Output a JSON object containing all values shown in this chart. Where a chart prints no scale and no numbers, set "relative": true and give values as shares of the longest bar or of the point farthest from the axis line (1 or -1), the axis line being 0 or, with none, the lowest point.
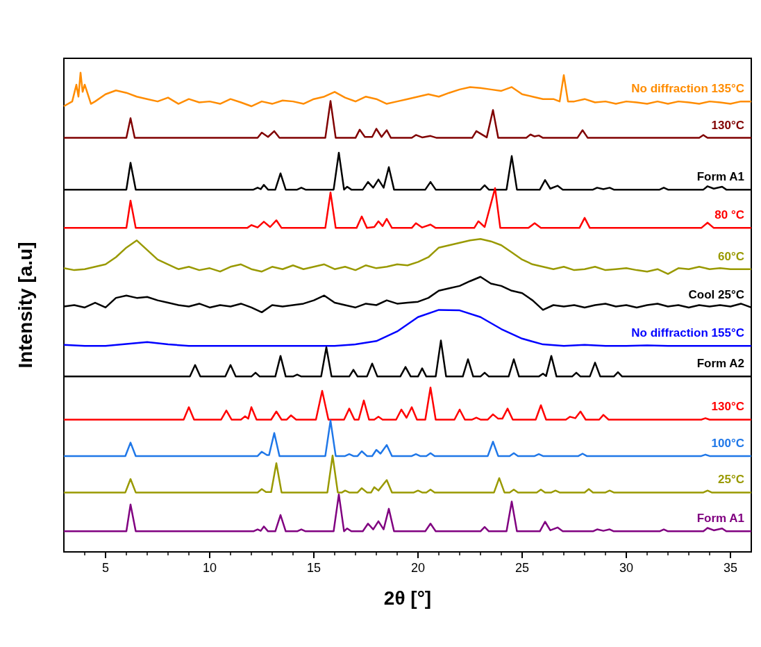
{
  "chart_data": {
    "type": "line",
    "xlabel": "2θ [°]",
    "ylabel": "Intensity [a.u]",
    "relative": true,
    "marker": "none",
    "xlim": [
      3,
      36
    ],
    "xticks": [
      5,
      10,
      15,
      20,
      25,
      30,
      35
    ],
    "grid": false,
    "series": [
      {
        "name": "No diffraction 135°C",
        "color": "#ff8c00",
        "x": [
          3,
          3.4,
          3.6,
          3.7,
          3.8,
          3.9,
          4.0,
          4.3,
          4.5,
          5,
          5.5,
          6,
          6.5,
          7,
          7.5,
          8,
          8.5,
          9,
          9.5,
          10,
          10.5,
          11,
          11.5,
          12,
          12.5,
          13,
          13.5,
          14,
          14.5,
          15,
          15.5,
          16,
          16.5,
          17,
          17.5,
          18,
          18.5,
          19,
          19.5,
          20,
          20.5,
          21,
          21.5,
          22,
          22.5,
          23,
          23.5,
          24,
          24.5,
          25,
          25.5,
          26,
          26.5,
          26.8,
          27,
          27.2,
          27.5,
          28,
          28.5,
          29,
          29.5,
          30,
          30.5,
          31,
          31.5,
          32,
          32.5,
          33,
          33.5,
          34,
          34.5,
          35,
          35.5,
          36
        ],
        "values": [
          0.93,
          0.94,
          0.975,
          0.95,
          1.0,
          0.96,
          0.975,
          0.935,
          0.94,
          0.955,
          0.963,
          0.958,
          0.95,
          0.945,
          0.94,
          0.948,
          0.935,
          0.945,
          0.938,
          0.94,
          0.935,
          0.945,
          0.938,
          0.93,
          0.94,
          0.935,
          0.942,
          0.94,
          0.935,
          0.945,
          0.95,
          0.96,
          0.948,
          0.94,
          0.95,
          0.945,
          0.935,
          0.94,
          0.945,
          0.95,
          0.955,
          0.95,
          0.958,
          0.965,
          0.97,
          0.968,
          0.965,
          0.962,
          0.97,
          0.955,
          0.95,
          0.945,
          0.945,
          0.94,
          0.995,
          0.94,
          0.94,
          0.945,
          0.938,
          0.94,
          0.935,
          0.94,
          0.938,
          0.935,
          0.94,
          0.935,
          0.94,
          0.938,
          0.935,
          0.94,
          0.938,
          0.935,
          0.94,
          0.94
        ]
      },
      {
        "name": "130°C",
        "color": "#800000",
        "x": [
          3,
          6.0,
          6.2,
          6.4,
          12.3,
          12.5,
          12.8,
          13.1,
          13.35,
          15.55,
          15.8,
          16.05,
          17.0,
          17.2,
          17.45,
          17.8,
          18.0,
          18.25,
          18.5,
          18.7,
          19.7,
          19.9,
          20.2,
          20.6,
          20.9,
          22.6,
          22.8,
          23.3,
          23.6,
          23.85,
          25.2,
          25.4,
          25.6,
          25.8,
          26.0,
          27.65,
          27.9,
          28.15,
          33.5,
          33.7,
          33.9,
          36
        ],
        "values": [
          0.864,
          0.864,
          0.905,
          0.864,
          0.864,
          0.875,
          0.866,
          0.878,
          0.864,
          0.864,
          0.941,
          0.864,
          0.864,
          0.881,
          0.866,
          0.866,
          0.883,
          0.866,
          0.88,
          0.864,
          0.864,
          0.87,
          0.865,
          0.868,
          0.864,
          0.864,
          0.878,
          0.865,
          0.922,
          0.864,
          0.864,
          0.871,
          0.867,
          0.869,
          0.864,
          0.864,
          0.88,
          0.864,
          0.864,
          0.87,
          0.864,
          0.864
        ]
      },
      {
        "name": "Form A1",
        "color": "#000000",
        "x": [
          3,
          6.0,
          6.2,
          6.45,
          12.1,
          12.3,
          12.45,
          12.6,
          12.8,
          13.15,
          13.4,
          13.65,
          14.2,
          14.4,
          14.6,
          15.95,
          16.2,
          16.45,
          16.6,
          16.8,
          17.35,
          17.6,
          17.85,
          18.1,
          18.35,
          18.6,
          18.85,
          20.35,
          20.6,
          20.85,
          23.0,
          23.2,
          23.4,
          24.25,
          24.5,
          24.75,
          25.85,
          26.1,
          26.35,
          26.7,
          26.95,
          28.4,
          28.6,
          28.9,
          29.2,
          29.4,
          31.6,
          31.8,
          32.0,
          33.7,
          33.9,
          34.2,
          34.6,
          34.8,
          36
        ],
        "values": [
          0.756,
          0.756,
          0.812,
          0.756,
          0.756,
          0.76,
          0.757,
          0.766,
          0.756,
          0.756,
          0.79,
          0.756,
          0.756,
          0.76,
          0.756,
          0.756,
          0.833,
          0.756,
          0.762,
          0.756,
          0.756,
          0.772,
          0.76,
          0.777,
          0.76,
          0.803,
          0.756,
          0.756,
          0.772,
          0.756,
          0.756,
          0.765,
          0.756,
          0.756,
          0.826,
          0.756,
          0.756,
          0.776,
          0.758,
          0.764,
          0.756,
          0.756,
          0.76,
          0.757,
          0.76,
          0.756,
          0.756,
          0.76,
          0.756,
          0.756,
          0.763,
          0.758,
          0.762,
          0.756,
          0.756
        ]
      },
      {
        "name": "80 °C",
        "color": "#ff0000",
        "x": [
          3,
          6.0,
          6.2,
          6.45,
          11.8,
          12.0,
          12.3,
          12.6,
          12.9,
          13.2,
          13.45,
          15.55,
          15.8,
          16.05,
          17.05,
          17.3,
          17.55,
          17.9,
          18.1,
          18.3,
          18.5,
          18.75,
          19.7,
          19.9,
          20.2,
          20.6,
          20.85,
          22.7,
          22.9,
          23.2,
          23.7,
          23.95,
          25.3,
          25.6,
          25.9,
          27.75,
          28.0,
          28.25,
          33.6,
          33.9,
          34.2,
          36
        ],
        "values": [
          0.676,
          0.676,
          0.733,
          0.676,
          0.676,
          0.682,
          0.677,
          0.689,
          0.678,
          0.692,
          0.676,
          0.676,
          0.75,
          0.676,
          0.676,
          0.7,
          0.676,
          0.678,
          0.69,
          0.68,
          0.695,
          0.676,
          0.676,
          0.686,
          0.677,
          0.683,
          0.676,
          0.676,
          0.69,
          0.678,
          0.759,
          0.676,
          0.676,
          0.686,
          0.676,
          0.676,
          0.697,
          0.676,
          0.676,
          0.687,
          0.676,
          0.676
        ]
      },
      {
        "name": "60°C",
        "color": "#999900",
        "x": [
          3,
          3.5,
          4,
          4.5,
          5,
          5.5,
          6,
          6.5,
          7,
          7.5,
          8,
          8.5,
          9,
          9.5,
          10,
          10.5,
          11,
          11.5,
          12,
          12.5,
          13,
          13.5,
          14,
          14.5,
          15,
          15.5,
          16,
          16.5,
          17,
          17.5,
          18,
          18.5,
          19,
          19.5,
          20,
          20.5,
          21,
          21.5,
          22,
          22.5,
          23,
          23.5,
          24,
          24.5,
          25,
          25.5,
          26,
          26.5,
          27,
          27.5,
          28,
          28.5,
          29,
          29.5,
          30,
          30.5,
          31,
          31.5,
          32,
          32.5,
          33,
          33.5,
          34,
          34.5,
          35,
          35.5,
          36
        ],
        "values": [
          0.592,
          0.588,
          0.59,
          0.595,
          0.6,
          0.615,
          0.635,
          0.65,
          0.63,
          0.61,
          0.6,
          0.59,
          0.595,
          0.588,
          0.592,
          0.585,
          0.595,
          0.6,
          0.59,
          0.585,
          0.595,
          0.59,
          0.598,
          0.59,
          0.595,
          0.6,
          0.59,
          0.595,
          0.588,
          0.598,
          0.592,
          0.595,
          0.6,
          0.598,
          0.605,
          0.615,
          0.635,
          0.64,
          0.645,
          0.65,
          0.653,
          0.648,
          0.64,
          0.625,
          0.61,
          0.6,
          0.595,
          0.59,
          0.595,
          0.588,
          0.59,
          0.595,
          0.588,
          0.59,
          0.592,
          0.588,
          0.585,
          0.59,
          0.58,
          0.592,
          0.59,
          0.595,
          0.59,
          0.592,
          0.59,
          0.59,
          0.59
        ]
      },
      {
        "name": "Cool 25°C",
        "color": "#000000",
        "x": [
          3,
          3.5,
          4,
          4.5,
          5,
          5.5,
          6,
          6.5,
          7,
          7.5,
          8,
          8.5,
          9,
          9.5,
          10,
          10.5,
          11,
          11.5,
          12,
          12.5,
          13,
          13.5,
          14,
          14.5,
          15,
          15.5,
          16,
          16.5,
          17,
          17.5,
          18,
          18.5,
          19,
          19.5,
          20,
          20.5,
          21,
          21.5,
          22,
          22.5,
          23,
          23.5,
          24,
          24.5,
          25,
          25.5,
          26,
          26.5,
          27,
          27.5,
          28,
          28.5,
          29,
          29.5,
          30,
          30.5,
          31,
          31.5,
          32,
          32.5,
          33,
          33.5,
          34,
          34.5,
          35,
          35.5,
          36
        ],
        "values": [
          0.512,
          0.515,
          0.51,
          0.52,
          0.51,
          0.53,
          0.535,
          0.53,
          0.532,
          0.525,
          0.52,
          0.515,
          0.512,
          0.518,
          0.51,
          0.515,
          0.512,
          0.518,
          0.51,
          0.5,
          0.515,
          0.512,
          0.515,
          0.518,
          0.525,
          0.535,
          0.52,
          0.515,
          0.51,
          0.518,
          0.515,
          0.525,
          0.518,
          0.52,
          0.522,
          0.53,
          0.545,
          0.55,
          0.555,
          0.565,
          0.574,
          0.56,
          0.555,
          0.545,
          0.54,
          0.525,
          0.505,
          0.515,
          0.512,
          0.515,
          0.51,
          0.515,
          0.518,
          0.512,
          0.515,
          0.51,
          0.515,
          0.518,
          0.512,
          0.515,
          0.51,
          0.515,
          0.512,
          0.515,
          0.512,
          0.518,
          0.51
        ]
      },
      {
        "name": "No diffraction 155°C",
        "color": "#0000ff",
        "x": [
          3,
          4,
          5,
          6,
          7,
          8,
          9,
          10,
          11,
          12,
          13,
          14,
          15,
          16,
          17,
          18,
          19,
          20,
          21,
          22,
          23,
          24,
          25,
          26,
          27,
          28,
          29,
          30,
          31,
          32,
          33,
          34,
          35,
          36
        ],
        "values": [
          0.432,
          0.43,
          0.43,
          0.434,
          0.438,
          0.433,
          0.43,
          0.43,
          0.43,
          0.43,
          0.43,
          0.43,
          0.43,
          0.43,
          0.433,
          0.44,
          0.46,
          0.49,
          0.505,
          0.504,
          0.49,
          0.465,
          0.445,
          0.433,
          0.43,
          0.432,
          0.43,
          0.43,
          0.431,
          0.43,
          0.43,
          0.43,
          0.43,
          0.43
        ]
      },
      {
        "name": "Form A2",
        "color": "#000000",
        "x": [
          3,
          9.05,
          9.3,
          9.55,
          10.75,
          11.0,
          11.25,
          12.0,
          12.2,
          12.4,
          13.15,
          13.4,
          13.65,
          14.0,
          14.2,
          14.4,
          15.35,
          15.6,
          15.85,
          16.7,
          16.9,
          17.1,
          17.55,
          17.8,
          18.05,
          19.15,
          19.4,
          19.65,
          20.0,
          20.2,
          20.4,
          20.85,
          21.1,
          21.35,
          22.15,
          22.4,
          22.65,
          23.0,
          23.2,
          23.4,
          24.35,
          24.6,
          24.85,
          25.8,
          26.0,
          26.15,
          26.4,
          26.65,
          27.4,
          27.6,
          27.8,
          28.25,
          28.5,
          28.75,
          29.4,
          29.6,
          29.8,
          36
        ],
        "values": [
          0.366,
          0.366,
          0.39,
          0.366,
          0.366,
          0.39,
          0.366,
          0.366,
          0.374,
          0.366,
          0.366,
          0.409,
          0.366,
          0.366,
          0.37,
          0.366,
          0.366,
          0.427,
          0.366,
          0.366,
          0.38,
          0.366,
          0.366,
          0.393,
          0.366,
          0.366,
          0.386,
          0.366,
          0.366,
          0.383,
          0.366,
          0.366,
          0.441,
          0.366,
          0.366,
          0.402,
          0.366,
          0.366,
          0.374,
          0.366,
          0.366,
          0.402,
          0.366,
          0.366,
          0.372,
          0.367,
          0.409,
          0.366,
          0.366,
          0.374,
          0.366,
          0.366,
          0.395,
          0.366,
          0.366,
          0.375,
          0.366,
          0.366
        ]
      },
      {
        "name": "130°C",
        "color": "#ff0000",
        "x": [
          3,
          8.75,
          9.0,
          9.25,
          10.55,
          10.8,
          11.05,
          11.5,
          11.7,
          11.85,
          12.0,
          12.25,
          12.95,
          13.2,
          13.45,
          13.7,
          13.9,
          14.15,
          15.1,
          15.4,
          15.7,
          16.45,
          16.7,
          16.95,
          17.15,
          17.4,
          17.65,
          17.9,
          18.1,
          18.3,
          18.95,
          19.2,
          19.45,
          19.7,
          19.95,
          20.35,
          20.6,
          20.85,
          21.75,
          22.0,
          22.25,
          22.6,
          22.8,
          23.0,
          23.35,
          23.6,
          23.85,
          24.05,
          24.3,
          24.55,
          25.65,
          25.9,
          26.15,
          27.1,
          27.3,
          27.55,
          27.8,
          28.05,
          28.7,
          28.9,
          29.15,
          33.6,
          33.8,
          34.0,
          36
        ],
        "values": [
          0.276,
          0.276,
          0.302,
          0.276,
          0.276,
          0.295,
          0.276,
          0.276,
          0.283,
          0.278,
          0.302,
          0.276,
          0.276,
          0.293,
          0.276,
          0.276,
          0.285,
          0.276,
          0.276,
          0.336,
          0.276,
          0.276,
          0.299,
          0.276,
          0.276,
          0.316,
          0.276,
          0.276,
          0.282,
          0.276,
          0.276,
          0.297,
          0.28,
          0.302,
          0.276,
          0.276,
          0.343,
          0.276,
          0.276,
          0.297,
          0.276,
          0.276,
          0.28,
          0.276,
          0.276,
          0.287,
          0.278,
          0.278,
          0.299,
          0.276,
          0.276,
          0.306,
          0.276,
          0.276,
          0.282,
          0.279,
          0.293,
          0.276,
          0.276,
          0.286,
          0.276,
          0.276,
          0.279,
          0.276,
          0.276
        ]
      },
      {
        "name": "100°C",
        "color": "#1f77e8",
        "x": [
          3,
          5.95,
          6.2,
          6.45,
          12.3,
          12.5,
          12.75,
          12.85,
          13.1,
          13.35,
          15.55,
          15.8,
          16.05,
          16.5,
          16.7,
          16.9,
          17.1,
          17.3,
          17.55,
          17.8,
          18.0,
          18.2,
          18.5,
          18.75,
          19.7,
          19.9,
          20.1,
          20.4,
          20.6,
          20.8,
          23.35,
          23.6,
          23.85,
          24.4,
          24.6,
          24.8,
          25.6,
          25.8,
          26.0,
          27.7,
          27.9,
          28.1,
          33.6,
          33.8,
          34.0,
          36
        ],
        "values": [
          0.2,
          0.2,
          0.228,
          0.2,
          0.2,
          0.209,
          0.202,
          0.202,
          0.248,
          0.2,
          0.2,
          0.274,
          0.2,
          0.2,
          0.204,
          0.2,
          0.2,
          0.21,
          0.2,
          0.2,
          0.213,
          0.205,
          0.223,
          0.2,
          0.2,
          0.204,
          0.2,
          0.2,
          0.206,
          0.2,
          0.2,
          0.23,
          0.2,
          0.2,
          0.206,
          0.2,
          0.2,
          0.204,
          0.2,
          0.2,
          0.205,
          0.2,
          0.2,
          0.203,
          0.2,
          0.2
        ]
      },
      {
        "name": "25°C",
        "color": "#999900",
        "x": [
          3,
          5.95,
          6.2,
          6.45,
          12.3,
          12.5,
          12.7,
          12.95,
          13.2,
          13.45,
          15.65,
          15.9,
          16.15,
          16.35,
          16.5,
          16.7,
          17.1,
          17.3,
          17.55,
          17.75,
          17.9,
          18.1,
          18.5,
          18.75,
          19.8,
          20.0,
          20.2,
          20.4,
          20.6,
          20.8,
          23.65,
          23.9,
          24.15,
          24.4,
          24.6,
          24.8,
          25.7,
          25.9,
          26.1,
          26.4,
          26.6,
          26.8,
          28.0,
          28.2,
          28.4,
          29.0,
          29.2,
          29.4,
          33.7,
          33.9,
          34.1,
          36
        ],
        "values": [
          0.124,
          0.124,
          0.152,
          0.124,
          0.124,
          0.131,
          0.125,
          0.125,
          0.185,
          0.124,
          0.124,
          0.201,
          0.124,
          0.124,
          0.128,
          0.124,
          0.124,
          0.133,
          0.124,
          0.124,
          0.135,
          0.128,
          0.15,
          0.124,
          0.124,
          0.128,
          0.124,
          0.124,
          0.13,
          0.124,
          0.124,
          0.154,
          0.124,
          0.124,
          0.13,
          0.124,
          0.124,
          0.13,
          0.124,
          0.124,
          0.128,
          0.124,
          0.124,
          0.131,
          0.124,
          0.124,
          0.128,
          0.124,
          0.124,
          0.128,
          0.124,
          0.124
        ]
      },
      {
        "name": "Form A1",
        "color": "#800080",
        "x": [
          3,
          6.0,
          6.2,
          6.45,
          12.1,
          12.3,
          12.45,
          12.6,
          12.8,
          13.15,
          13.4,
          13.65,
          14.2,
          14.4,
          14.6,
          15.95,
          16.2,
          16.45,
          16.6,
          16.8,
          17.35,
          17.6,
          17.85,
          18.1,
          18.35,
          18.6,
          18.85,
          20.35,
          20.6,
          20.85,
          23.0,
          23.2,
          23.4,
          24.25,
          24.5,
          24.75,
          25.85,
          26.1,
          26.35,
          26.7,
          26.95,
          28.4,
          28.6,
          28.9,
          29.2,
          29.4,
          31.6,
          31.8,
          32.0,
          33.7,
          33.9,
          34.2,
          34.6,
          34.8,
          36
        ],
        "values": [
          0.043,
          0.043,
          0.099,
          0.043,
          0.043,
          0.047,
          0.044,
          0.053,
          0.043,
          0.043,
          0.077,
          0.043,
          0.043,
          0.047,
          0.043,
          0.043,
          0.12,
          0.043,
          0.049,
          0.043,
          0.043,
          0.059,
          0.047,
          0.064,
          0.047,
          0.09,
          0.043,
          0.043,
          0.059,
          0.043,
          0.043,
          0.052,
          0.043,
          0.043,
          0.105,
          0.043,
          0.043,
          0.063,
          0.045,
          0.051,
          0.043,
          0.043,
          0.047,
          0.044,
          0.047,
          0.043,
          0.043,
          0.047,
          0.043,
          0.043,
          0.05,
          0.045,
          0.049,
          0.043,
          0.043
        ]
      }
    ]
  }
}
